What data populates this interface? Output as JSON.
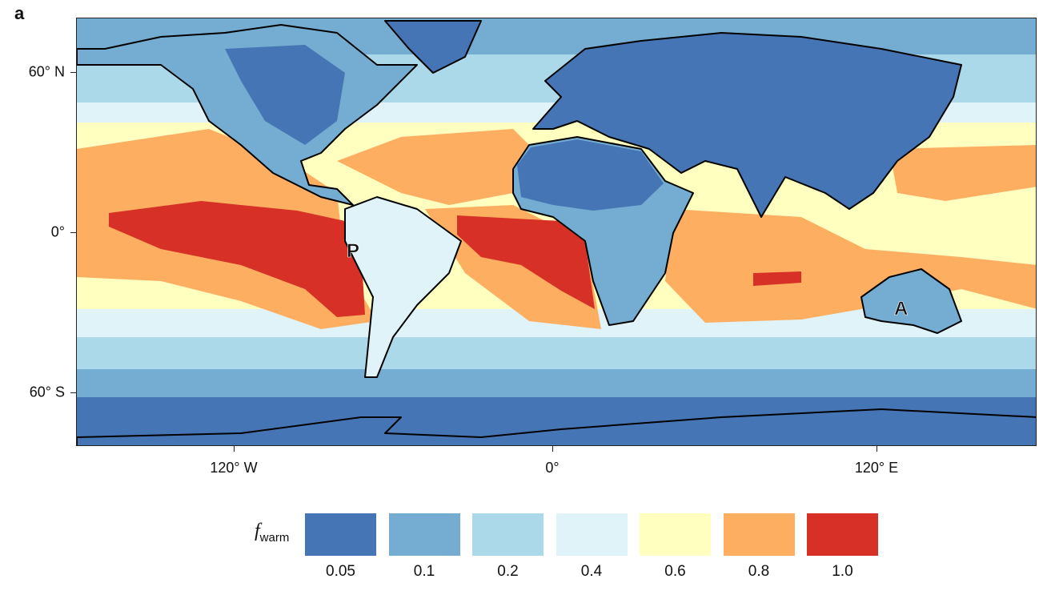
{
  "panel_label": "a",
  "axes": {
    "y_ticks": [
      {
        "label": "60° N",
        "lat": 60
      },
      {
        "label": "0°",
        "lat": 0
      },
      {
        "label": "60° S",
        "lat": -60
      }
    ],
    "x_ticks": [
      {
        "label": "120° W",
        "lon": -120
      },
      {
        "label": "0°",
        "lon": 0
      },
      {
        "label": "120° E",
        "lon": 120
      }
    ]
  },
  "annotations": [
    {
      "label": "P",
      "lon": -75,
      "lat": -7
    },
    {
      "label": "A",
      "lon": 130,
      "lat": -27
    }
  ],
  "legend": {
    "title_symbol": "f",
    "title_subscript": "warm",
    "items": [
      {
        "label": "0.05",
        "color": "#4575b4"
      },
      {
        "label": "0.1",
        "color": "#74add1"
      },
      {
        "label": "0.2",
        "color": "#abd9e9"
      },
      {
        "label": "0.4",
        "color": "#e0f3f8"
      },
      {
        "label": "0.6",
        "color": "#ffffbf"
      },
      {
        "label": "0.8",
        "color": "#fdae61"
      },
      {
        "label": "1.0",
        "color": "#d73027"
      }
    ]
  }
}
